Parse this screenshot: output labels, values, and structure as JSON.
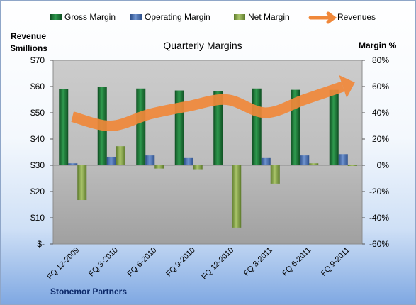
{
  "chart_data": {
    "type": "bar",
    "title": "Quarterly Margins",
    "categories": [
      "FQ 12-2009",
      "FQ 3-2010",
      "FQ 6-2010",
      "FQ 9-2010",
      "FQ 12-2010",
      "FQ 3-2011",
      "FQ 6-2011",
      "FQ 9-2011"
    ],
    "series": [
      {
        "name": "Gross Margin",
        "axis": "right",
        "unit": "%",
        "type": "bar",
        "values": [
          58,
          59.5,
          58.5,
          57,
          56.5,
          58.5,
          57.5,
          57.5
        ]
      },
      {
        "name": "Operating Margin",
        "axis": "right",
        "unit": "%",
        "type": "bar",
        "values": [
          1.5,
          6.5,
          7.5,
          5.5,
          0.5,
          5.5,
          7.5,
          8.5
        ]
      },
      {
        "name": "Net Margin",
        "axis": "right",
        "unit": "%",
        "type": "bar",
        "values": [
          -26.5,
          14.5,
          -2.5,
          -3,
          -47.5,
          -14,
          1.5,
          0
        ]
      },
      {
        "name": "Revenues",
        "axis": "left",
        "unit": "$millions",
        "type": "line",
        "values": [
          48.5,
          45,
          49.5,
          52.5,
          55,
          50,
          55,
          60
        ]
      }
    ],
    "left_axis": {
      "label_line1": "Revenue",
      "label_line2": "$millions",
      "ylim": [
        0,
        70
      ],
      "ticks": [
        "$-",
        "$10",
        "$20",
        "$30",
        "$40",
        "$50",
        "$60",
        "$70"
      ]
    },
    "right_axis": {
      "label": "Margin %",
      "ylim": [
        -60,
        80
      ],
      "ticks": [
        "-60%",
        "-40%",
        "-20%",
        "0%",
        "20%",
        "40%",
        "60%",
        "80%"
      ]
    },
    "legend_position": "top",
    "grid": false,
    "colors": {
      "gross": "#1f7a3a",
      "operating": "#4a6fb0",
      "net": "#86a34a",
      "revenue": "#f0883a",
      "plot_top": "#c9c9c9",
      "plot_bottom": "#a2a2a2"
    }
  },
  "footer": {
    "company": "Stonemor Partners"
  }
}
